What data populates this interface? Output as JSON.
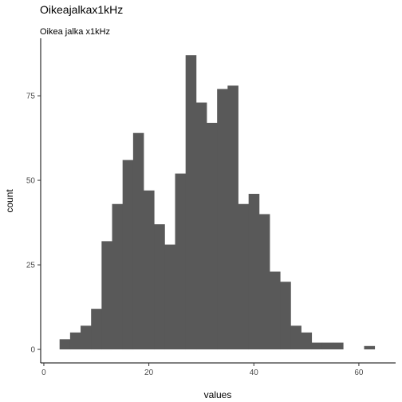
{
  "chart_data": {
    "type": "bar",
    "title": "Oikeajalkax1kHz",
    "subtitle": "Oikea jalka x1kHz",
    "xlabel": "values",
    "ylabel": "count",
    "xlim": [
      -0.6,
      67
    ],
    "ylim": [
      -4,
      92
    ],
    "xticks": [
      0,
      20,
      40,
      60
    ],
    "yticks": [
      0,
      25,
      50,
      75
    ],
    "grid": false,
    "bar_color": "#595959",
    "bins": [
      {
        "x0": 3,
        "x1": 5,
        "count": 3
      },
      {
        "x0": 5,
        "x1": 7,
        "count": 5
      },
      {
        "x0": 7,
        "x1": 9,
        "count": 7
      },
      {
        "x0": 9,
        "x1": 11,
        "count": 12
      },
      {
        "x0": 11,
        "x1": 13,
        "count": 32
      },
      {
        "x0": 13,
        "x1": 15,
        "count": 43
      },
      {
        "x0": 15,
        "x1": 17,
        "count": 56
      },
      {
        "x0": 17,
        "x1": 19,
        "count": 64
      },
      {
        "x0": 19,
        "x1": 21,
        "count": 47
      },
      {
        "x0": 21,
        "x1": 23,
        "count": 37
      },
      {
        "x0": 23,
        "x1": 25,
        "count": 31
      },
      {
        "x0": 25,
        "x1": 27,
        "count": 52
      },
      {
        "x0": 27,
        "x1": 29,
        "count": 87
      },
      {
        "x0": 29,
        "x1": 31,
        "count": 73
      },
      {
        "x0": 31,
        "x1": 33,
        "count": 67
      },
      {
        "x0": 33,
        "x1": 35,
        "count": 77
      },
      {
        "x0": 35,
        "x1": 37,
        "count": 78
      },
      {
        "x0": 37,
        "x1": 39,
        "count": 43
      },
      {
        "x0": 39,
        "x1": 41,
        "count": 46
      },
      {
        "x0": 41,
        "x1": 43,
        "count": 40
      },
      {
        "x0": 43,
        "x1": 45,
        "count": 23
      },
      {
        "x0": 45,
        "x1": 47,
        "count": 20
      },
      {
        "x0": 47,
        "x1": 49,
        "count": 7
      },
      {
        "x0": 49,
        "x1": 51,
        "count": 5
      },
      {
        "x0": 51,
        "x1": 53,
        "count": 2
      },
      {
        "x0": 53,
        "x1": 55,
        "count": 2
      },
      {
        "x0": 55,
        "x1": 57,
        "count": 2
      },
      {
        "x0": 57,
        "x1": 59,
        "count": 0
      },
      {
        "x0": 59,
        "x1": 61,
        "count": 0
      },
      {
        "x0": 61,
        "x1": 63,
        "count": 1
      }
    ]
  }
}
